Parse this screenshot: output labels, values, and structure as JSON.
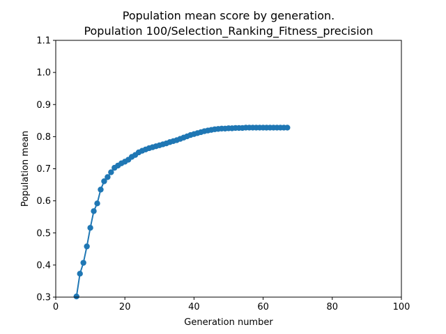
{
  "chart_data": {
    "type": "line",
    "title": "Population mean score by generation.",
    "subtitle": "Population 100/Selection_Ranking_Fitness_precision",
    "xlabel": "Generation number",
    "ylabel": "Population mean",
    "xlim": [
      0,
      100
    ],
    "ylim": [
      0.3,
      1.1
    ],
    "xticks": [
      "0",
      "20",
      "40",
      "60",
      "80",
      "100"
    ],
    "yticks": [
      "0.3",
      "0.4",
      "0.5",
      "0.6",
      "0.7",
      "0.8",
      "0.9",
      "1.0",
      "1.1"
    ],
    "grid": false,
    "series": [
      {
        "color": "#1f77b4",
        "marker": "circle",
        "x": [
          6,
          7,
          8,
          9,
          10,
          11,
          12,
          13,
          14,
          15,
          16,
          17,
          18,
          19,
          20,
          21,
          22,
          23,
          24,
          25,
          26,
          27,
          28,
          29,
          30,
          31,
          32,
          33,
          34,
          35,
          36,
          37,
          38,
          39,
          40,
          41,
          42,
          43,
          44,
          45,
          46,
          47,
          48,
          49,
          50,
          51,
          52,
          53,
          54,
          55,
          56,
          57,
          58,
          59,
          60,
          61,
          62,
          63,
          64,
          65,
          66,
          67
        ],
        "y": [
          0.302,
          0.373,
          0.407,
          0.458,
          0.516,
          0.568,
          0.592,
          0.635,
          0.661,
          0.674,
          0.689,
          0.703,
          0.71,
          0.717,
          0.722,
          0.728,
          0.737,
          0.743,
          0.751,
          0.756,
          0.76,
          0.764,
          0.767,
          0.77,
          0.773,
          0.776,
          0.779,
          0.783,
          0.786,
          0.789,
          0.793,
          0.797,
          0.801,
          0.805,
          0.808,
          0.811,
          0.814,
          0.817,
          0.819,
          0.821,
          0.823,
          0.824,
          0.825,
          0.825,
          0.826,
          0.826,
          0.827,
          0.827,
          0.827,
          0.828,
          0.828,
          0.828,
          0.828,
          0.828,
          0.828,
          0.828,
          0.828,
          0.828,
          0.828,
          0.828,
          0.828,
          0.828
        ]
      }
    ]
  }
}
